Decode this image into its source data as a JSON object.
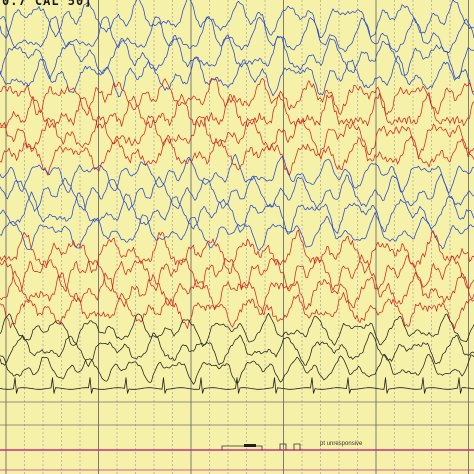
{
  "header": {
    "calibration_label": "0.7 CAL 50]"
  },
  "annotation": {
    "event_note": "pt unresponsive"
  },
  "colors": {
    "background": "#f6f1a9",
    "grid_major": "#6f6f6f",
    "grid_minor": "#9a9a9a",
    "blue": "#2748c8",
    "red": "#d2261d",
    "black": "#1f1f1f",
    "marker": "#cc2f86"
  },
  "channels": [
    {
      "group": "blue",
      "amp": 22
    },
    {
      "group": "blue",
      "amp": 24
    },
    {
      "group": "blue",
      "amp": 24
    },
    {
      "group": "blue",
      "amp": 22
    },
    {
      "group": "red",
      "amp": 20
    },
    {
      "group": "red",
      "amp": 22
    },
    {
      "group": "red",
      "amp": 22
    },
    {
      "group": "red",
      "amp": 20
    },
    {
      "group": "blue",
      "amp": 20
    },
    {
      "group": "blue",
      "amp": 22
    },
    {
      "group": "blue",
      "amp": 22
    },
    {
      "group": "blue",
      "amp": 20
    },
    {
      "group": "red",
      "amp": 22
    },
    {
      "group": "red",
      "amp": 22
    },
    {
      "group": "red",
      "amp": 20
    },
    {
      "group": "red",
      "amp": 18
    },
    {
      "group": "black",
      "amp": 18
    },
    {
      "group": "black",
      "amp": 18
    },
    {
      "group": "black",
      "amp": 16
    },
    {
      "group": "ecg",
      "amp": 6
    }
  ]
}
